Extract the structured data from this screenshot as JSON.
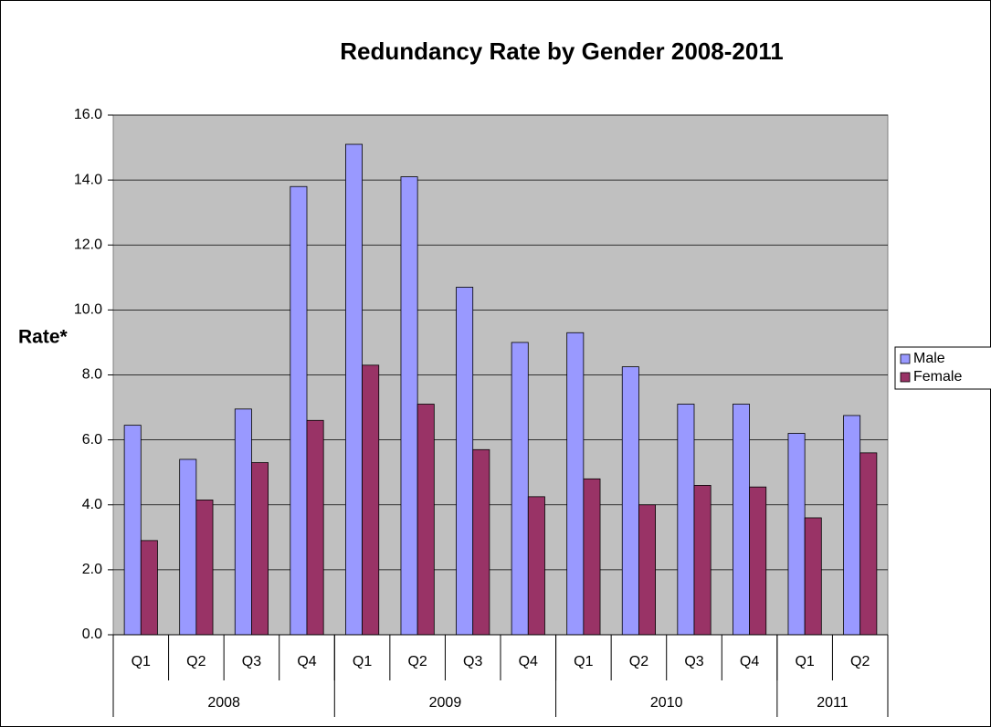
{
  "chart_data": {
    "type": "bar",
    "title": "Redundancy Rate by Gender 2008-2011",
    "y_label": "Rate*",
    "categories": [
      "Q1",
      "Q2",
      "Q3",
      "Q4",
      "Q1",
      "Q2",
      "Q3",
      "Q4",
      "Q1",
      "Q2",
      "Q3",
      "Q4",
      "Q1",
      "Q2"
    ],
    "groups": [
      {
        "label": "2008",
        "span": 4
      },
      {
        "label": "2009",
        "span": 4
      },
      {
        "label": "2010",
        "span": 4
      },
      {
        "label": "2011",
        "span": 2
      }
    ],
    "series": [
      {
        "name": "Male",
        "color": "#9999ff",
        "values": [
          6.45,
          5.4,
          6.95,
          13.8,
          15.1,
          14.1,
          10.7,
          9.0,
          9.3,
          8.25,
          7.1,
          7.1,
          6.2,
          6.75
        ]
      },
      {
        "name": "Female",
        "color": "#993366",
        "values": [
          2.9,
          4.15,
          5.3,
          6.6,
          8.3,
          7.1,
          5.7,
          4.25,
          4.8,
          4.0,
          4.6,
          4.55,
          3.6,
          5.6
        ]
      }
    ],
    "ylim": [
      0,
      16
    ],
    "yticks": [
      {
        "value": 0,
        "label": "0.0"
      },
      {
        "value": 2,
        "label": "2.0"
      },
      {
        "value": 4,
        "label": "4.0"
      },
      {
        "value": 6,
        "label": "6.0"
      },
      {
        "value": 8,
        "label": "8.0"
      },
      {
        "value": 10,
        "label": "10.0"
      },
      {
        "value": 12,
        "label": "12.0"
      },
      {
        "value": 14,
        "label": "14.0"
      },
      {
        "value": 16,
        "label": "16.0"
      }
    ],
    "grid": true,
    "legend": "right"
  }
}
